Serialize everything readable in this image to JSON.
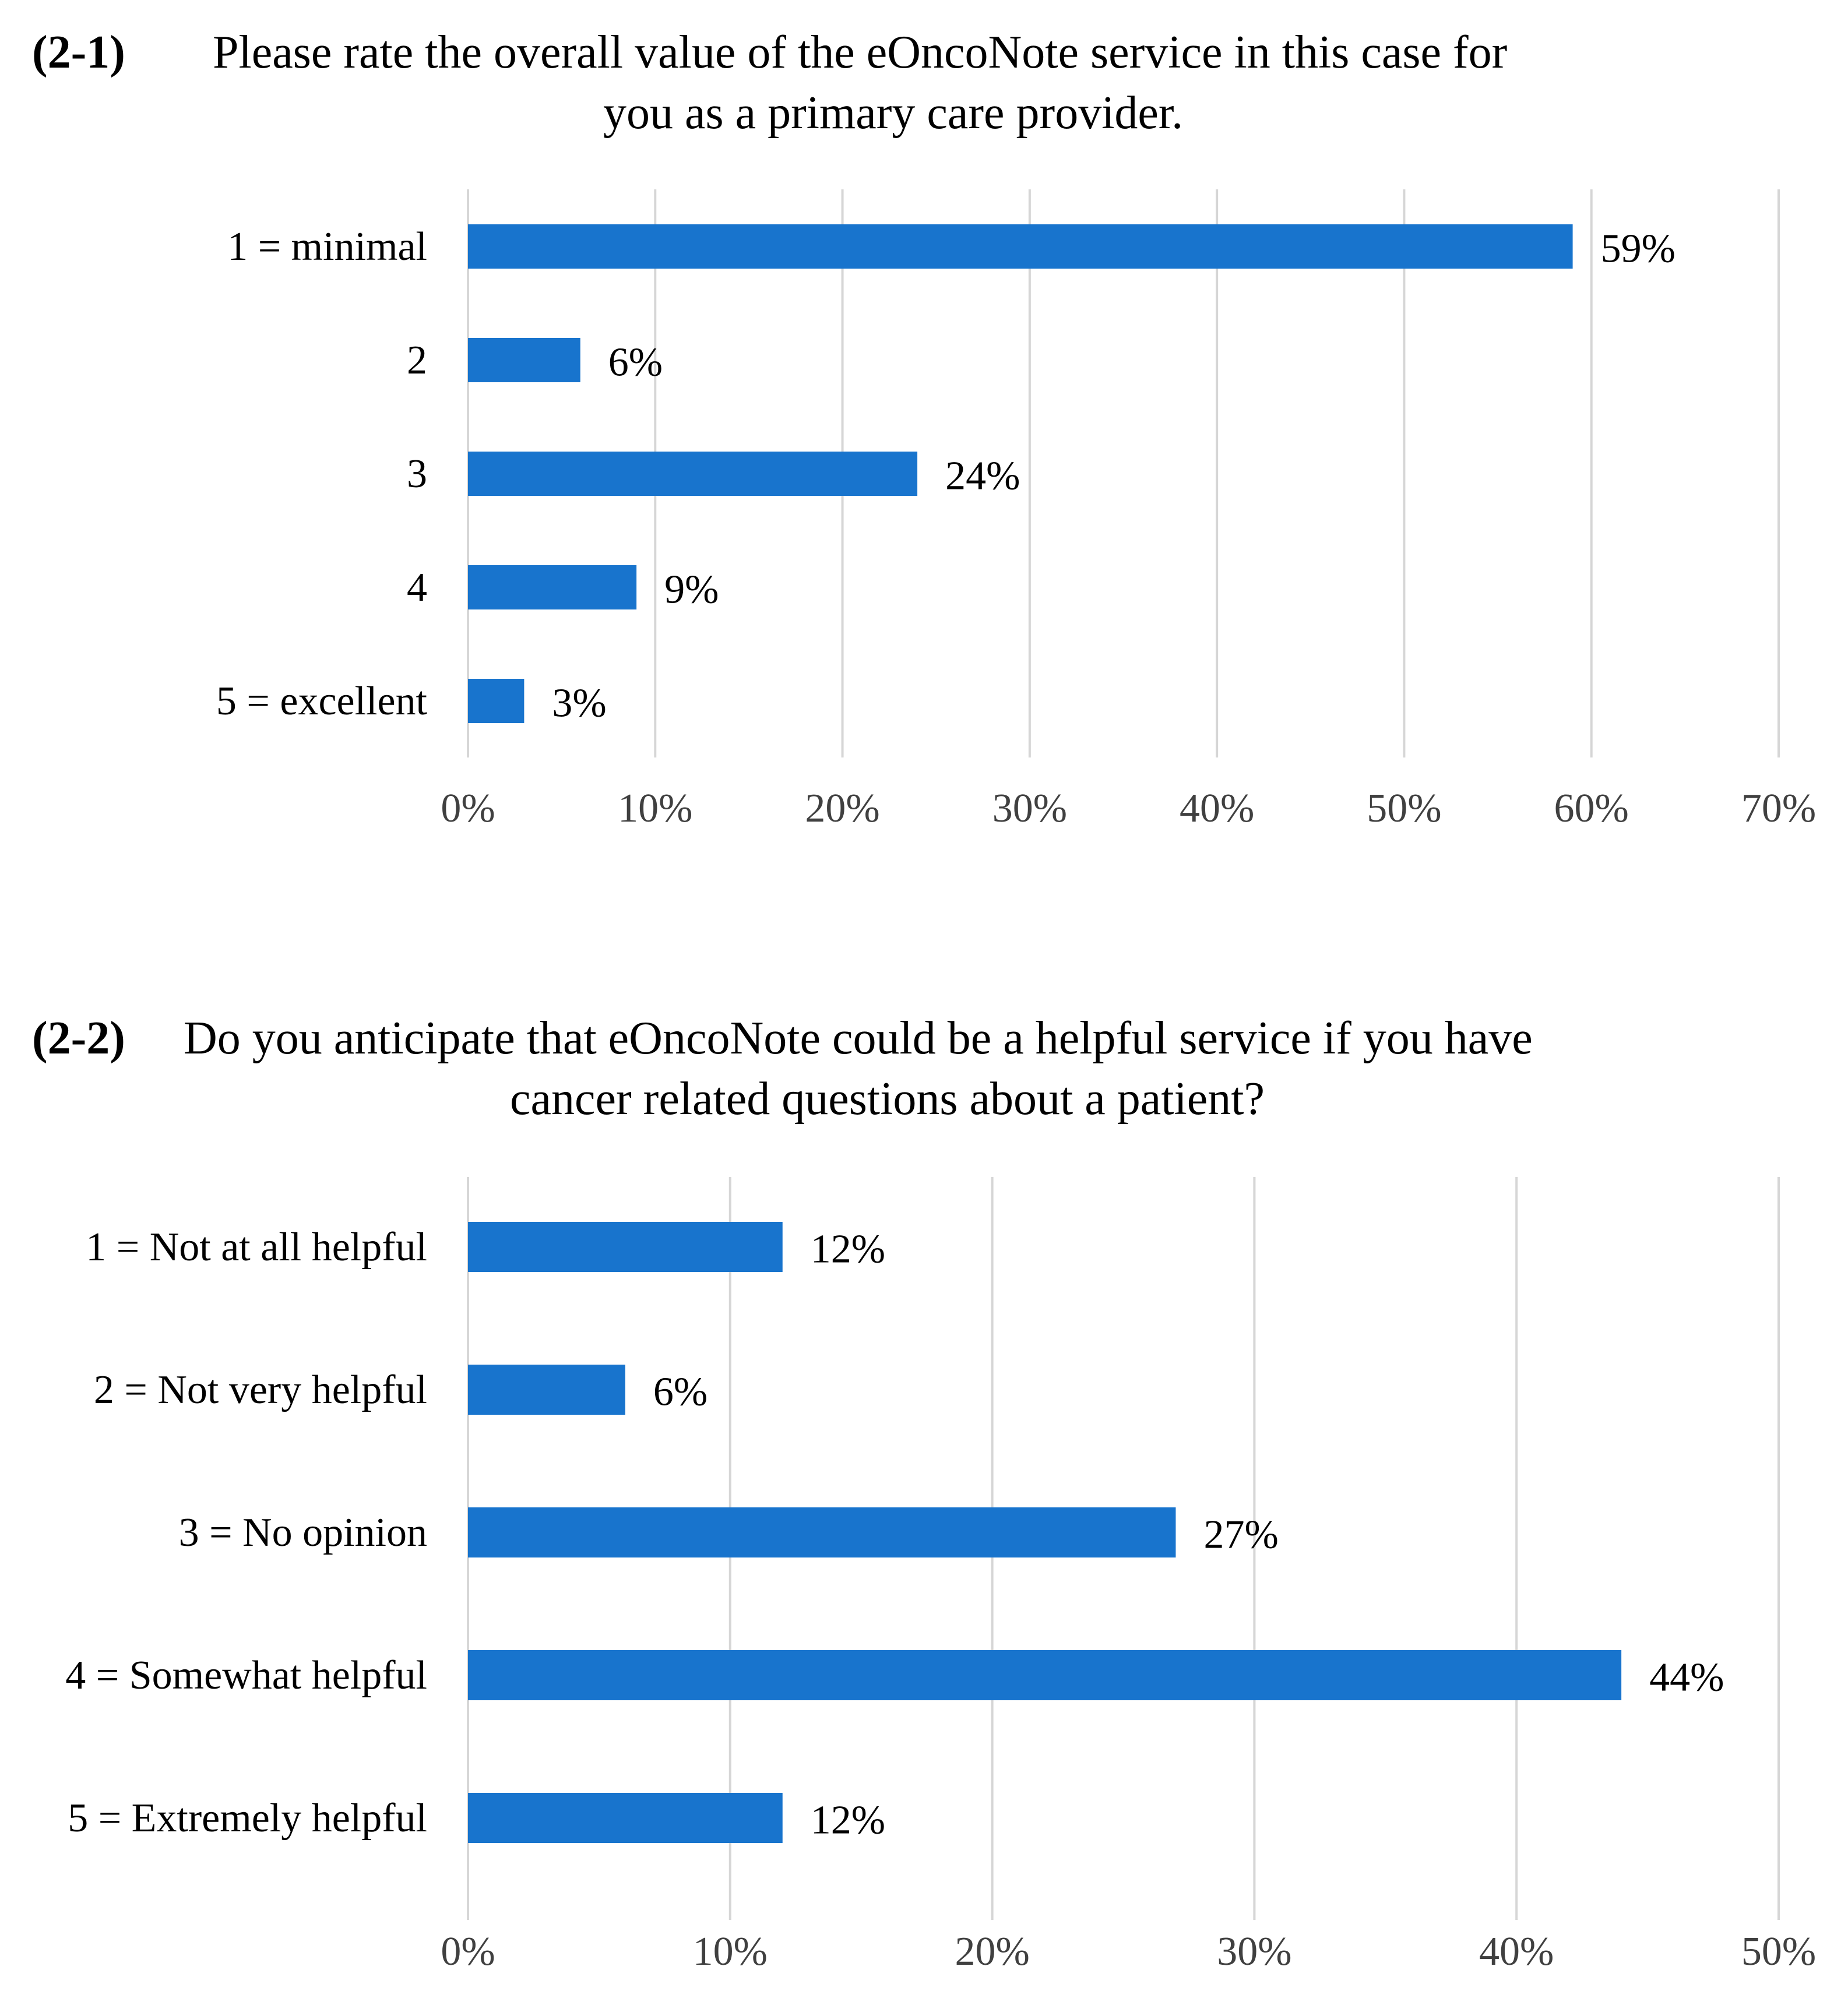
{
  "chart_data": [
    {
      "type": "bar",
      "orientation": "horizontal",
      "number": "(2-1)",
      "title_lines": [
        "Please rate the overall value of the eOncoNote service in this case for",
        "you as a primary care provider."
      ],
      "categories": [
        "1 = minimal",
        "2",
        "3",
        "4",
        "5 = excellent"
      ],
      "values": [
        59,
        6,
        24,
        9,
        3
      ],
      "value_labels": [
        "59%",
        "6%",
        "24%",
        "9%",
        "3%"
      ],
      "xlim": [
        0,
        70
      ],
      "xticks": [
        "0%",
        "10%",
        "20%",
        "30%",
        "40%",
        "50%",
        "60%",
        "70%"
      ],
      "grid": "vertical",
      "bar_color": "#1874CD"
    },
    {
      "type": "bar",
      "orientation": "horizontal",
      "number": "(2-2)",
      "title_lines": [
        "Do you anticipate that eOncoNote could be a helpful service if you have",
        "cancer related questions about a patient?"
      ],
      "categories": [
        "1 = Not at all helpful",
        "2 = Not very helpful",
        "3 = No opinion",
        "4 = Somewhat helpful",
        "5 = Extremely helpful"
      ],
      "values": [
        12,
        6,
        27,
        44,
        12
      ],
      "value_labels": [
        "12%",
        "6%",
        "27%",
        "44%",
        "12%"
      ],
      "xlim": [
        0,
        50
      ],
      "xticks": [
        "0%",
        "10%",
        "20%",
        "30%",
        "40%",
        "50%"
      ],
      "grid": "vertical",
      "bar_color": "#1874CD"
    }
  ]
}
